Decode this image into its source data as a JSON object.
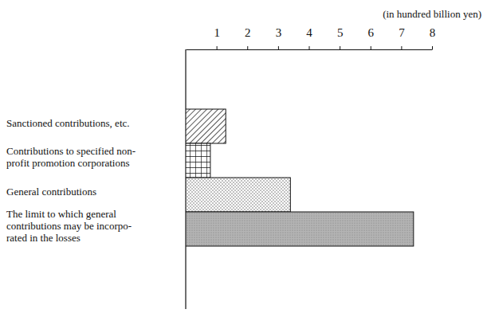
{
  "chart_data": {
    "type": "bar",
    "orientation": "horizontal",
    "xlabel": "(in hundred billion yen)",
    "categories": [
      "Sanctioned contributions, etc.",
      "Contributions to specified non-\nprofit promotion corporations",
      "General contributions",
      "The limit to which general\ncontributions may be incorpo-\nrated in the losses"
    ],
    "values": [
      1.3,
      0.8,
      3.4,
      7.4
    ],
    "xlim": [
      0,
      8
    ],
    "xticks": [
      1,
      2,
      3,
      4,
      5,
      6,
      7,
      8
    ],
    "grid": false
  }
}
